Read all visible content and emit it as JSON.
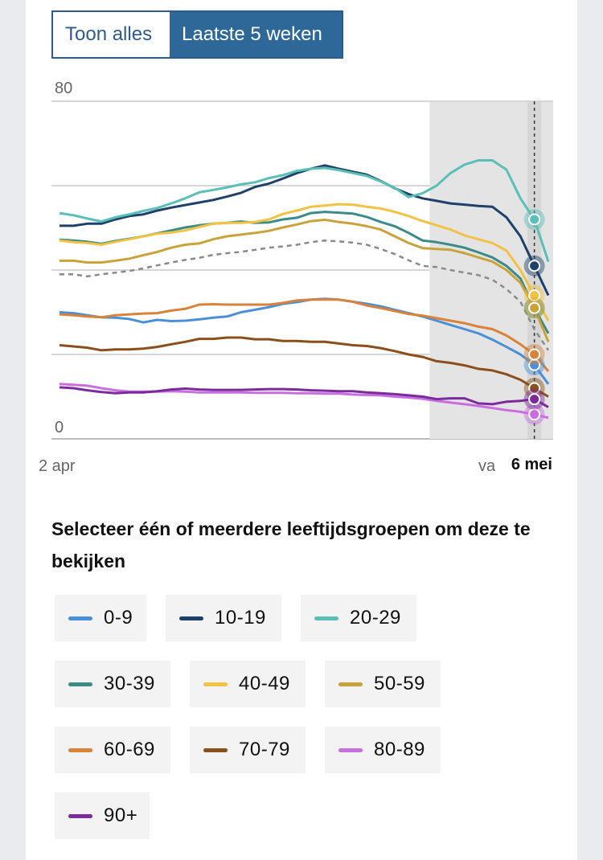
{
  "toggle": {
    "show_all_label": "Toon alles",
    "last_weeks_label": "Laatste 5 weken"
  },
  "question": "Selecteer één of meerdere leeftijdsgroepen om deze te bekijken",
  "chart_data": {
    "type": "line",
    "y_tick_labels": [
      "80",
      "0"
    ],
    "ylim": [
      0,
      80
    ],
    "grid": true,
    "x_start_label": "2 apr",
    "x_end_label": "6 mei",
    "x_partial_label": "va",
    "x": [
      "2 apr",
      "3 apr",
      "4 apr",
      "5 apr",
      "6 apr",
      "7 apr",
      "8 apr",
      "9 apr",
      "10 apr",
      "11 apr",
      "12 apr",
      "13 apr",
      "14 apr",
      "15 apr",
      "16 apr",
      "17 apr",
      "18 apr",
      "19 apr",
      "20 apr",
      "21 apr",
      "22 apr",
      "23 apr",
      "24 apr",
      "25 apr",
      "26 apr",
      "27 apr",
      "28 apr",
      "29 apr",
      "30 apr",
      "1 mei",
      "2 mei",
      "3 mei",
      "4 mei",
      "5 mei",
      "6 mei",
      "7 mei"
    ],
    "series": [
      {
        "name": "0-9",
        "color": "#4a90d9",
        "values": [
          30,
          29.8,
          29.3,
          28.8,
          28.7,
          28.4,
          27.6,
          28.2,
          27.9,
          28.0,
          28.3,
          28.7,
          29.0,
          30.0,
          30.6,
          31.2,
          32.0,
          32.4,
          33.0,
          33.2,
          33.0,
          32.5,
          32.0,
          31.4,
          30.6,
          29.8,
          29.0,
          28.0,
          27.0,
          26.0,
          25.0,
          23.5,
          21.8,
          20.0,
          17.5,
          13.0
        ]
      },
      {
        "name": "10-19",
        "color": "#1d416a",
        "values": [
          50.5,
          50.5,
          51.0,
          51.0,
          52.0,
          52.8,
          53.2,
          54.1,
          54.8,
          55.4,
          56.0,
          56.6,
          57.4,
          58.3,
          59.7,
          60.5,
          61.7,
          63.0,
          64.0,
          64.8,
          64.0,
          63.3,
          62.6,
          61.1,
          59.4,
          58.0,
          57.0,
          56.4,
          55.8,
          55.5,
          55.2,
          55.0,
          52.5,
          48.0,
          41.0,
          34.0
        ]
      },
      {
        "name": "20-29",
        "color": "#5abfb7",
        "values": [
          53.5,
          53.0,
          52.2,
          51.5,
          52.5,
          53.2,
          54.0,
          54.7,
          55.8,
          57.0,
          58.4,
          59.0,
          59.6,
          60.3,
          60.8,
          61.8,
          62.5,
          63.5,
          64.0,
          64.2,
          63.7,
          63.0,
          62.3,
          61.0,
          59.5,
          57.3,
          58.2,
          60.0,
          63.0,
          65.0,
          66.0,
          66.0,
          63.8,
          57.0,
          52.0,
          42.0
        ]
      },
      {
        "name": "30-39",
        "color": "#3b8b87",
        "values": [
          47.2,
          47.0,
          46.7,
          46.2,
          46.9,
          47.4,
          48.0,
          48.7,
          49.4,
          50.1,
          50.6,
          51.0,
          51.2,
          51.5,
          51.2,
          51.3,
          52.0,
          52.4,
          53.5,
          53.8,
          53.6,
          53.4,
          52.6,
          51.4,
          50.4,
          48.8,
          47.0,
          46.6,
          46.0,
          45.3,
          44.2,
          43.0,
          41.0,
          38.0,
          31.0,
          25.0
        ]
      },
      {
        "name": "40-49",
        "color": "#f2c242",
        "values": [
          47.0,
          46.6,
          46.4,
          46.0,
          46.7,
          47.3,
          48.0,
          48.6,
          48.9,
          49.4,
          50.2,
          51.0,
          51.2,
          51.2,
          51.4,
          52.0,
          53.3,
          54.1,
          55.0,
          55.3,
          55.6,
          55.5,
          55.0,
          54.6,
          53.8,
          52.8,
          51.6,
          50.6,
          49.6,
          48.2,
          47.3,
          46.4,
          44.6,
          40.0,
          34.0,
          28.0
        ]
      },
      {
        "name": "50-59",
        "color": "#c9a33a",
        "values": [
          42.2,
          42.2,
          41.8,
          41.8,
          42.2,
          42.7,
          43.5,
          44.3,
          45.3,
          46.0,
          46.3,
          47.3,
          48.0,
          48.4,
          48.8,
          49.3,
          50.1,
          50.8,
          51.6,
          51.9,
          51.4,
          51.0,
          50.4,
          49.6,
          48.0,
          46.4,
          45.2,
          45.0,
          44.8,
          44.0,
          43.0,
          42.0,
          40.0,
          37.0,
          31.0,
          23.0
        ]
      },
      {
        "name": "60-69",
        "color": "#d9823c",
        "values": [
          29.5,
          29.3,
          29.0,
          28.8,
          29.3,
          29.5,
          29.7,
          29.8,
          30.4,
          30.8,
          31.8,
          31.9,
          31.8,
          31.8,
          31.8,
          31.8,
          32.2,
          32.8,
          33.0,
          33.0,
          33.0,
          32.5,
          31.6,
          31.0,
          30.3,
          29.6,
          29.2,
          28.6,
          28.0,
          27.4,
          26.6,
          26.0,
          24.5,
          22.4,
          20.0,
          16.0
        ]
      },
      {
        "name": "70-79",
        "color": "#8b4f1b",
        "values": [
          22.2,
          21.9,
          21.6,
          21.0,
          21.2,
          21.2,
          21.4,
          21.8,
          22.4,
          23.0,
          23.7,
          23.7,
          24.0,
          24.0,
          23.6,
          23.6,
          23.2,
          23.2,
          23.0,
          23.0,
          22.6,
          22.2,
          22.0,
          21.5,
          20.8,
          20.0,
          19.4,
          18.4,
          18.0,
          17.4,
          16.6,
          16.2,
          15.3,
          14.0,
          12.0,
          10.0
        ]
      },
      {
        "name": "80-89",
        "color": "#c96ee0",
        "values": [
          13.0,
          12.8,
          12.6,
          12.0,
          11.5,
          11.2,
          11.2,
          11.2,
          11.3,
          11.2,
          11.0,
          11.0,
          11.0,
          11.0,
          10.9,
          10.9,
          10.9,
          10.8,
          10.8,
          10.7,
          10.7,
          10.5,
          10.4,
          10.3,
          10.0,
          9.8,
          9.5,
          9.0,
          8.6,
          8.2,
          7.8,
          7.3,
          6.8,
          6.4,
          5.8,
          5.0
        ]
      },
      {
        "name": "90+",
        "color": "#7c2b9a",
        "values": [
          12.2,
          12.0,
          11.5,
          11.1,
          10.8,
          11.0,
          11.0,
          11.3,
          11.7,
          11.9,
          11.7,
          11.6,
          11.6,
          11.6,
          11.7,
          11.8,
          11.8,
          11.7,
          11.5,
          11.4,
          11.3,
          11.3,
          11.0,
          10.8,
          10.6,
          10.3,
          10.0,
          9.4,
          9.6,
          9.6,
          8.4,
          8.2,
          8.8,
          9.0,
          9.4,
          7.5
        ]
      },
      {
        "name": "",
        "color": "#8a8a8a",
        "dashed": true,
        "values": [
          39.0,
          39.0,
          38.5,
          39.0,
          39.4,
          39.8,
          40.4,
          41.1,
          41.8,
          42.4,
          42.9,
          43.6,
          44.0,
          44.3,
          44.8,
          45.3,
          45.6,
          46.0,
          46.6,
          47.0,
          46.8,
          46.5,
          46.0,
          45.0,
          43.8,
          42.3,
          41.0,
          40.7,
          40.0,
          39.4,
          38.8,
          37.7,
          35.5,
          32.5,
          26.0,
          21.0
        ]
      }
    ],
    "highlight_window": {
      "from": "29 apr",
      "to": "7 mei"
    },
    "marker_date": "6 mei"
  },
  "legend": [
    {
      "label": "0-9",
      "color": "#4a90d9"
    },
    {
      "label": "10-19",
      "color": "#1d416a"
    },
    {
      "label": "20-29",
      "color": "#5abfb7"
    },
    {
      "label": "30-39",
      "color": "#3b8b87"
    },
    {
      "label": "40-49",
      "color": "#f2c242"
    },
    {
      "label": "50-59",
      "color": "#c9a33a"
    },
    {
      "label": "60-69",
      "color": "#d9823c"
    },
    {
      "label": "70-79",
      "color": "#8b4f1b"
    },
    {
      "label": "80-89",
      "color": "#c96ee0"
    },
    {
      "label": "90+",
      "color": "#7c2b9a"
    }
  ]
}
